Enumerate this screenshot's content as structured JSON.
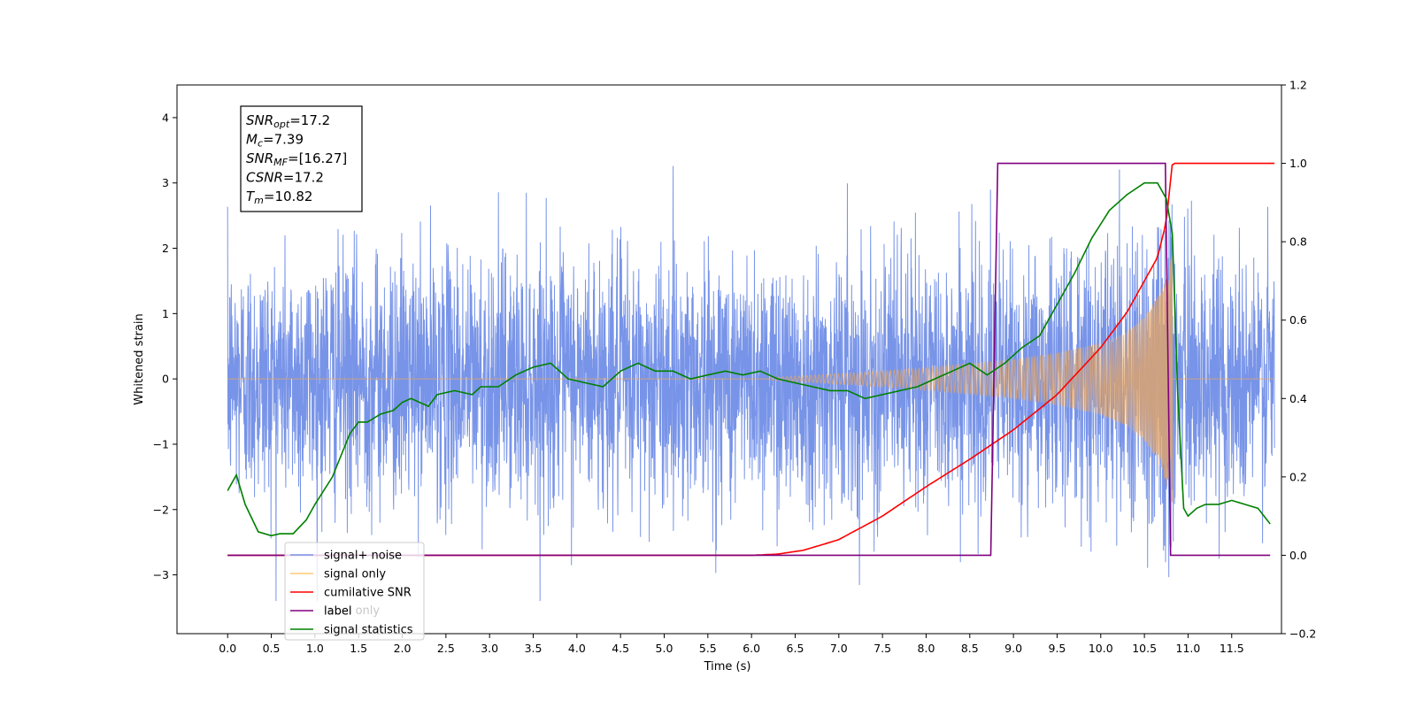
{
  "chart_data": {
    "type": "line",
    "xlabel": "Time (s)",
    "ylabel": "Whitened strain",
    "xlim": [
      -0.58,
      12.07
    ],
    "ylim": [
      -3.9,
      4.5
    ],
    "y2lim": [
      -0.2,
      1.2
    ],
    "xticks": [
      "0.0",
      "0.5",
      "1.0",
      "1.5",
      "2.0",
      "2.5",
      "3.0",
      "3.5",
      "4.0",
      "4.5",
      "5.0",
      "5.5",
      "6.0",
      "6.5",
      "7.0",
      "7.5",
      "8.0",
      "8.5",
      "9.0",
      "9.5",
      "10.0",
      "10.5",
      "11.0",
      "11.5"
    ],
    "yticks": [
      "−3",
      "−2",
      "−1",
      "0",
      "1",
      "2",
      "3",
      "4"
    ],
    "y2ticks": [
      "−0.2",
      "0.0",
      "0.2",
      "0.4",
      "0.6",
      "0.8",
      "1.0",
      "1.2"
    ],
    "grid": false,
    "legend_position": "lower-left",
    "legend": [
      {
        "label": "signal+ noise",
        "color": "#7894e8"
      },
      {
        "label": "signal only",
        "color": "#ffc875"
      },
      {
        "label": "cumilative SNR",
        "color": "#ff0000"
      },
      {
        "label": "label",
        "color": "#800080"
      },
      {
        "label": "signal statistics",
        "color": "#008000"
      }
    ],
    "hidden_label_text": "label only",
    "annotation": [
      {
        "main": "SNR",
        "sub": "opt",
        "rest": "=17.2"
      },
      {
        "main": "M",
        "sub": "c",
        "rest": "=7.39"
      },
      {
        "main": "SNR",
        "sub": "MF",
        "rest": "=[16.27]"
      },
      {
        "main": "CSNR",
        "sub": "",
        "rest": "=17.2"
      },
      {
        "main": "T",
        "sub": "m",
        "rest": "=10.82"
      }
    ],
    "series": [
      {
        "name": "signal+ noise",
        "axis": "left",
        "color": "#7894e8",
        "description": "whitened noise with injected chirp",
        "x_range": [
          0.0,
          11.99
        ],
        "approx_envelope": [
          -2.5,
          2.5
        ],
        "max_peak": 3.7,
        "min_peak": -3.5
      },
      {
        "name": "signal only",
        "axis": "left",
        "color": "#ffc875",
        "chirp_start": 6.2,
        "merger": 10.82,
        "envelope_x": [
          6.2,
          7.0,
          8.0,
          9.0,
          9.5,
          10.0,
          10.3,
          10.5,
          10.65,
          10.75,
          10.82
        ],
        "envelope_y": [
          0.02,
          0.08,
          0.17,
          0.3,
          0.4,
          0.55,
          0.72,
          0.95,
          1.25,
          1.6,
          1.9
        ]
      },
      {
        "name": "cumilative SNR",
        "axis": "right",
        "color": "#ff0000",
        "x": [
          0.0,
          6.0,
          6.3,
          6.6,
          7.0,
          7.5,
          8.0,
          8.5,
          9.0,
          9.5,
          10.0,
          10.3,
          10.5,
          10.65,
          10.75,
          10.82,
          11.99
        ],
        "y": [
          0.0,
          0.0,
          0.003,
          0.013,
          0.04,
          0.1,
          0.175,
          0.245,
          0.32,
          0.41,
          0.53,
          0.62,
          0.7,
          0.76,
          0.85,
          1.0,
          1.0
        ]
      },
      {
        "name": "label",
        "axis": "right",
        "color": "#800080",
        "x": [
          0.0,
          8.74,
          8.82,
          10.74,
          10.8,
          11.94
        ],
        "y": [
          0.0,
          0.0,
          1.0,
          1.0,
          0.0,
          0.0
        ]
      },
      {
        "name": "signal statistics",
        "axis": "right",
        "color": "#008000",
        "x": [
          0.0,
          0.1,
          0.2,
          0.35,
          0.5,
          0.6,
          0.75,
          0.9,
          1.0,
          1.2,
          1.4,
          1.5,
          1.6,
          1.75,
          1.9,
          2.0,
          2.1,
          2.3,
          2.4,
          2.6,
          2.8,
          2.9,
          3.1,
          3.3,
          3.5,
          3.7,
          3.9,
          4.1,
          4.3,
          4.5,
          4.7,
          4.9,
          5.1,
          5.3,
          5.5,
          5.7,
          5.9,
          6.1,
          6.3,
          6.5,
          6.7,
          6.9,
          7.1,
          7.3,
          7.5,
          7.7,
          7.9,
          8.1,
          8.3,
          8.5,
          8.7,
          8.9,
          9.1,
          9.3,
          9.5,
          9.7,
          9.9,
          10.1,
          10.3,
          10.5,
          10.65,
          10.75,
          10.82,
          10.88,
          10.95,
          11.0,
          11.1,
          11.2,
          11.35,
          11.5,
          11.65,
          11.8,
          11.94
        ],
        "y": [
          0.165,
          0.205,
          0.13,
          0.06,
          0.05,
          0.055,
          0.055,
          0.09,
          0.13,
          0.2,
          0.31,
          0.34,
          0.34,
          0.36,
          0.37,
          0.39,
          0.4,
          0.38,
          0.41,
          0.42,
          0.41,
          0.43,
          0.43,
          0.46,
          0.48,
          0.49,
          0.45,
          0.44,
          0.43,
          0.47,
          0.49,
          0.47,
          0.47,
          0.45,
          0.46,
          0.47,
          0.46,
          0.47,
          0.45,
          0.44,
          0.43,
          0.42,
          0.42,
          0.4,
          0.41,
          0.42,
          0.43,
          0.45,
          0.47,
          0.49,
          0.46,
          0.49,
          0.53,
          0.56,
          0.64,
          0.72,
          0.81,
          0.88,
          0.92,
          0.95,
          0.95,
          0.91,
          0.82,
          0.42,
          0.12,
          0.1,
          0.12,
          0.13,
          0.13,
          0.14,
          0.13,
          0.12,
          0.08
        ]
      }
    ]
  }
}
